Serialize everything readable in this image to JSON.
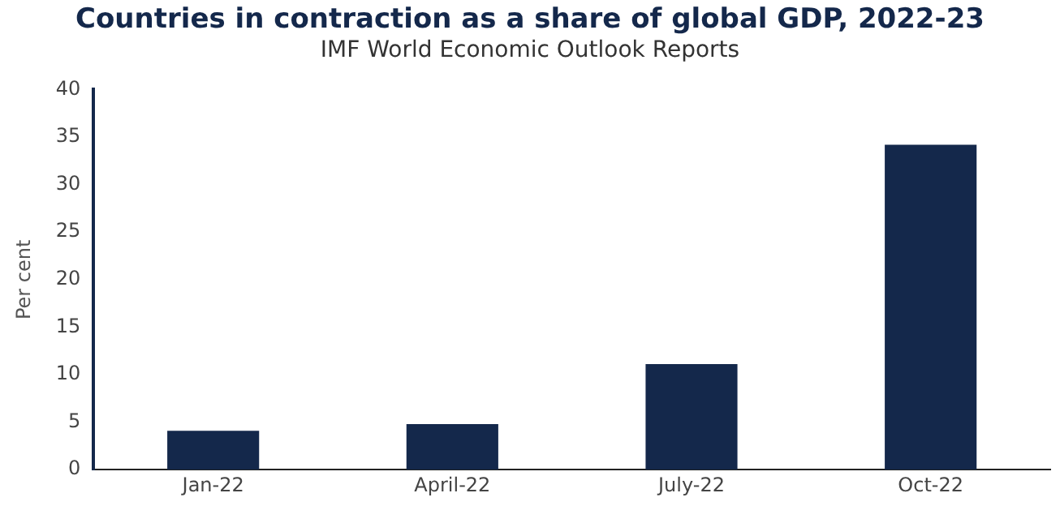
{
  "chart_data": {
    "type": "bar",
    "title": "Countries in contraction as a share of global GDP, 2022-23",
    "subtitle": "IMF World Economic Outlook Reports",
    "ylabel": "Per cent",
    "categories": [
      "Jan-22",
      "April-22",
      "July-22",
      "Oct-22"
    ],
    "values": [
      4.1,
      4.8,
      11.1,
      34.2
    ],
    "color": "#14284b",
    "ylim": [
      0,
      40
    ],
    "yticks": [
      0,
      5,
      10,
      15,
      20,
      25,
      30,
      35,
      40
    ],
    "grid": false,
    "legend": false
  }
}
